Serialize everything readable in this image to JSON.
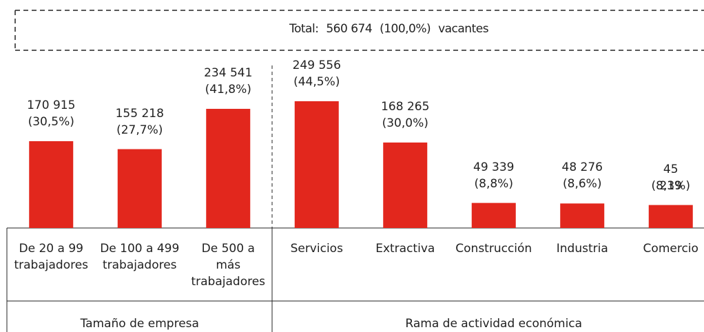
{
  "chart_data": {
    "type": "bar",
    "total": {
      "prefix": "Total:",
      "value": 560674,
      "value_label": "560 674",
      "share": 100.0,
      "share_label": "(100,0%)",
      "suffix": "vacantes"
    },
    "categories": [
      "De 20 a 99\ntrabajadores",
      "De 100 a 499\ntrabajadores",
      "De 500 a\nmás\ntrabajadores",
      "Servicios",
      "Extractiva",
      "Construcción",
      "Industria",
      "Comercio"
    ],
    "groups": [
      {
        "name": "Tamaño de empresa",
        "count": 3
      },
      {
        "name": "Rama de actividad económica",
        "count": 5
      }
    ],
    "values": [
      170915,
      155218,
      234541,
      249556,
      168265,
      49339,
      48276,
      45239
    ],
    "value_labels": [
      "170 915",
      "155 218",
      "234 541",
      "249 556",
      "168 265",
      "49 339",
      "48 276",
      "45 239"
    ],
    "shares": [
      30.5,
      27.7,
      41.8,
      44.5,
      30.0,
      8.8,
      8.6,
      8.1
    ],
    "share_labels": [
      "(30,5%)",
      "(27,7%)",
      "(41,8%)",
      "(44,5%)",
      "(30,0%)",
      "(8,8%)",
      "(8,6%)",
      "(8,1%)"
    ],
    "color": "#e2271d",
    "ylim": [
      0,
      280000
    ]
  }
}
